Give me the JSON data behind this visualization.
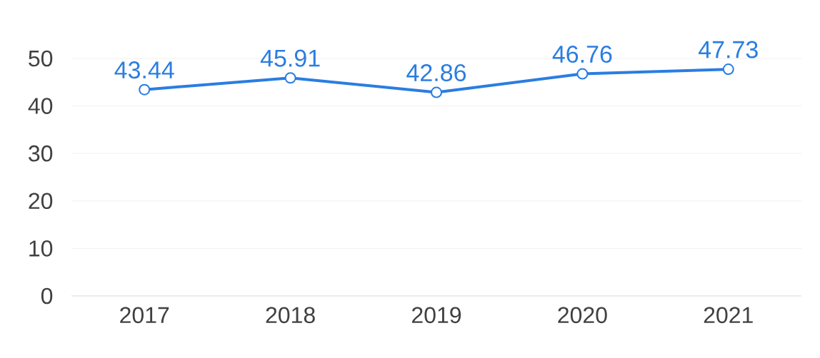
{
  "chart_data": {
    "type": "line",
    "categories": [
      "2017",
      "2018",
      "2019",
      "2020",
      "2021"
    ],
    "series": [
      {
        "color": "#2a7de1",
        "values": [
          43.44,
          45.91,
          42.86,
          46.76,
          47.73
        ]
      }
    ],
    "ylim": [
      0,
      50
    ],
    "yticks": [
      0,
      10,
      20,
      30,
      40,
      50
    ],
    "grid": "y",
    "marker": "circle",
    "data_labels": true
  }
}
